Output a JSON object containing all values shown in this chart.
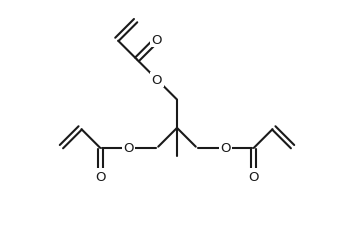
{
  "background_color": "#ffffff",
  "line_color": "#1a1a1a",
  "line_width": 1.5,
  "font_size": 9.5,
  "figsize": [
    3.54,
    2.32
  ],
  "dpi": 100,
  "xlim": [
    -1.0,
    11.0
  ],
  "ylim": [
    -0.5,
    8.5
  ]
}
